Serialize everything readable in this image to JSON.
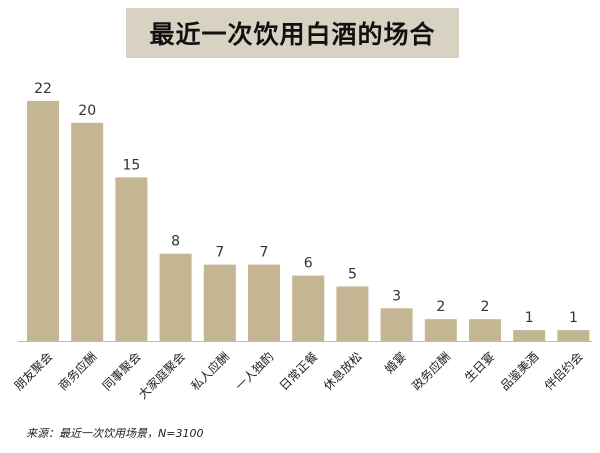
{
  "chart_data": {
    "type": "bar",
    "title": "最近一次饮用白酒的场合",
    "categories": [
      "朋友聚会",
      "商务应酬",
      "同事聚会",
      "大家庭聚会",
      "私人应酬",
      "一人独酌",
      "日常正餐",
      "休息放松",
      "婚宴",
      "政务应酬",
      "生日宴",
      "品鉴美酒",
      "伴侣约会"
    ],
    "values": [
      22,
      20,
      15,
      8,
      7,
      7,
      6,
      5,
      3,
      2,
      2,
      1,
      1
    ],
    "ylim": [
      0,
      22
    ],
    "grid": false,
    "legend": "none",
    "bar_color": "#c4b693",
    "axis_color": "#bbbbbb",
    "label_color": "#333333"
  },
  "source_note": "来源：最近一次饮用场景，N=3100"
}
